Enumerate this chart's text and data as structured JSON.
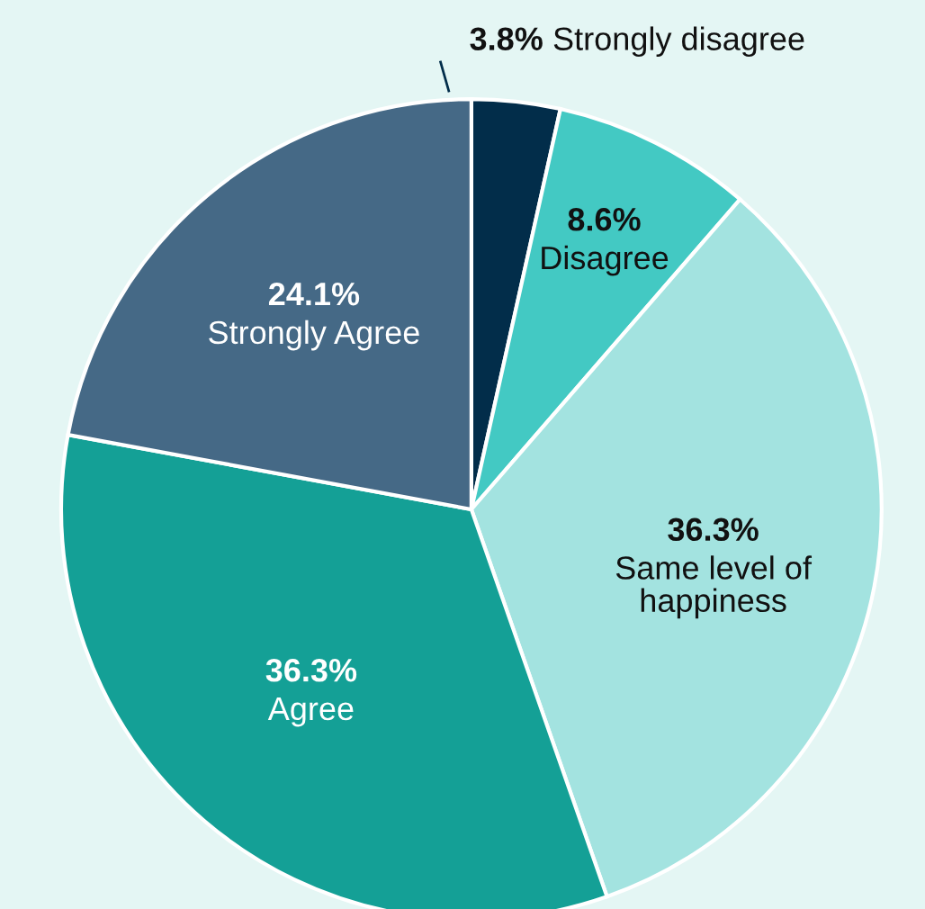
{
  "chart_data": {
    "type": "pie",
    "categories": [
      "Strongly disagree",
      "Disagree",
      "Same level of happiness",
      "Agree",
      "Strongly Agree"
    ],
    "values": [
      3.8,
      8.6,
      36.3,
      36.3,
      24.1
    ],
    "value_labels": [
      "3.8%",
      "8.6%",
      "36.3%",
      "36.3%",
      "24.1%"
    ],
    "colors": [
      "#022d4a",
      "#43c9c3",
      "#a3e3e0",
      "#14a096",
      "#456986"
    ]
  }
}
